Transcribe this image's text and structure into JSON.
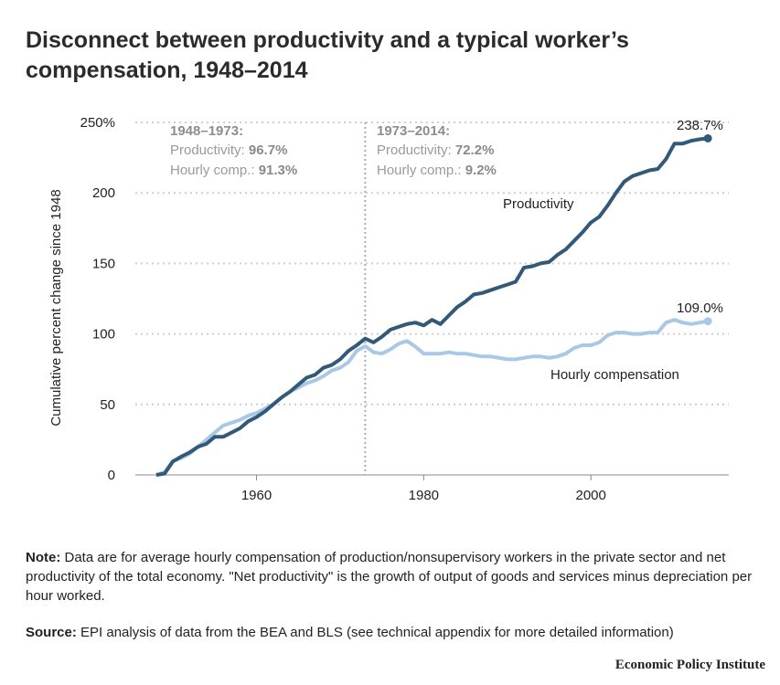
{
  "title": "Disconnect between productivity and a typical worker’s compensation, 1948–2014",
  "note_label": "Note:",
  "note_text": " Data are for average hourly compensation of production/nonsupervisory workers in the private sector and net productivity of the total economy. \"Net productivity\" is the growth of output of goods and services minus depreciation per hour worked.",
  "source_label": "Source:",
  "source_text": " EPI analysis of data from the BEA and BLS (see technical appendix for more detailed information)",
  "credit": "Economic Policy Institute",
  "colors": {
    "productivity": "#325a78",
    "compensation": "#a9c8e6",
    "annotation": "#9a9a9a",
    "grid": "#cfcfcf"
  },
  "chart_data": {
    "type": "line",
    "ylabel": "Cumulative percent change since 1948",
    "ylim": [
      0,
      250
    ],
    "xlim": [
      1948,
      2014
    ],
    "ytick_labels": [
      "0",
      "50",
      "100",
      "150",
      "200",
      "250%"
    ],
    "yticks": [
      0,
      50,
      100,
      150,
      200,
      250
    ],
    "xticks": [
      1960,
      1980,
      2000
    ],
    "xtick_labels": [
      "1960",
      "1980",
      "2000"
    ],
    "divider_year": 1973,
    "annotations": {
      "left": {
        "heading": "1948–1973:",
        "line1_label": "Productivity: ",
        "line1_value": "96.7%",
        "line2_label": "Hourly comp.: ",
        "line2_value": "91.3%"
      },
      "right": {
        "heading": "1973–2014:",
        "line1_label": "Productivity: ",
        "line1_value": "72.2%",
        "line2_label": "Hourly comp.: ",
        "line2_value": "9.2%"
      }
    },
    "x": [
      1948,
      1949,
      1950,
      1951,
      1952,
      1953,
      1954,
      1955,
      1956,
      1957,
      1958,
      1959,
      1960,
      1961,
      1962,
      1963,
      1964,
      1965,
      1966,
      1967,
      1968,
      1969,
      1970,
      1971,
      1972,
      1973,
      1974,
      1975,
      1976,
      1977,
      1978,
      1979,
      1980,
      1981,
      1982,
      1983,
      1984,
      1985,
      1986,
      1987,
      1988,
      1989,
      1990,
      1991,
      1992,
      1993,
      1994,
      1995,
      1996,
      1997,
      1998,
      1999,
      2000,
      2001,
      2002,
      2003,
      2004,
      2005,
      2006,
      2007,
      2008,
      2009,
      2010,
      2011,
      2012,
      2013,
      2014
    ],
    "series": [
      {
        "name": "Productivity",
        "end_label": "238.7%",
        "values": [
          0,
          1,
          9.5,
          13,
          16,
          20,
          22,
          27,
          27,
          30,
          33,
          38,
          41,
          45,
          50,
          55,
          59,
          64,
          69,
          71,
          76,
          78,
          82,
          88,
          92,
          96.7,
          94,
          98,
          103,
          105,
          107,
          108,
          106,
          110,
          107,
          113,
          119,
          123,
          128,
          129,
          131,
          133,
          135,
          137,
          147,
          148,
          150,
          151,
          156,
          160,
          166,
          172,
          179,
          183,
          191,
          200,
          208,
          212,
          214,
          216,
          217,
          224,
          235,
          235,
          237,
          238,
          238.7
        ]
      },
      {
        "name": "Hourly compensation",
        "end_label": "109.0%",
        "values": [
          0,
          2,
          10,
          12,
          15,
          20,
          25,
          30,
          35,
          37,
          39,
          42,
          44,
          47,
          50,
          55,
          59,
          62,
          65,
          67,
          70,
          74,
          76,
          80,
          88,
          91.3,
          87,
          86,
          89,
          93,
          95,
          91,
          86,
          86,
          86,
          87,
          86,
          86,
          85,
          84,
          84,
          83,
          82,
          82,
          83,
          84,
          84,
          83,
          84,
          86,
          90,
          92,
          92,
          94,
          99,
          101,
          101,
          100,
          100,
          101,
          101,
          108,
          110,
          108,
          107,
          108,
          109.0
        ]
      }
    ]
  }
}
